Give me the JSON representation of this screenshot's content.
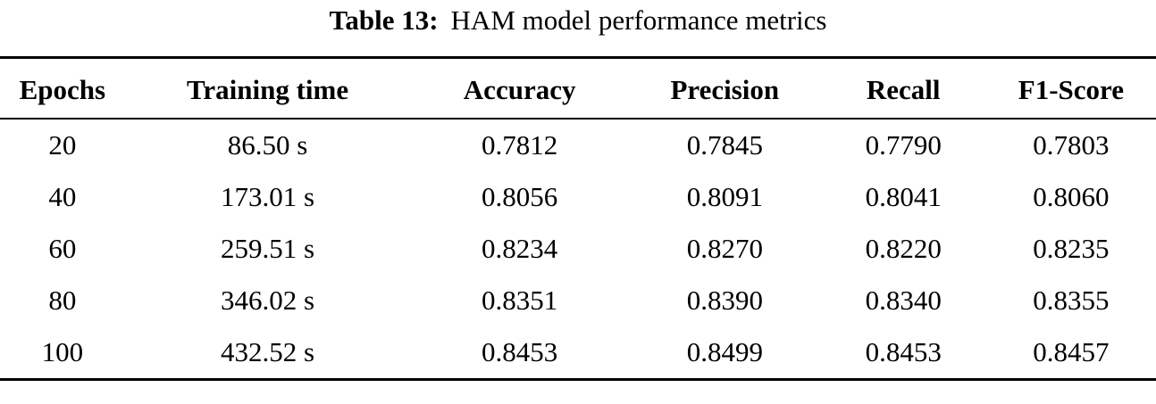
{
  "caption": {
    "label": "Table 13:",
    "title": "HAM model performance metrics"
  },
  "table": {
    "headers": [
      "Epochs",
      "Training time",
      "Accuracy",
      "Precision",
      "Recall",
      "F1-Score"
    ],
    "rows": [
      [
        "20",
        "86.50 s",
        "0.7812",
        "0.7845",
        "0.7790",
        "0.7803"
      ],
      [
        "40",
        "173.01 s",
        "0.8056",
        "0.8091",
        "0.8041",
        "0.8060"
      ],
      [
        "60",
        "259.51 s",
        "0.8234",
        "0.8270",
        "0.8220",
        "0.8235"
      ],
      [
        "80",
        "346.02 s",
        "0.8351",
        "0.8390",
        "0.8340",
        "0.8355"
      ],
      [
        "100",
        "432.52 s",
        "0.8453",
        "0.8499",
        "0.8453",
        "0.8457"
      ]
    ]
  }
}
